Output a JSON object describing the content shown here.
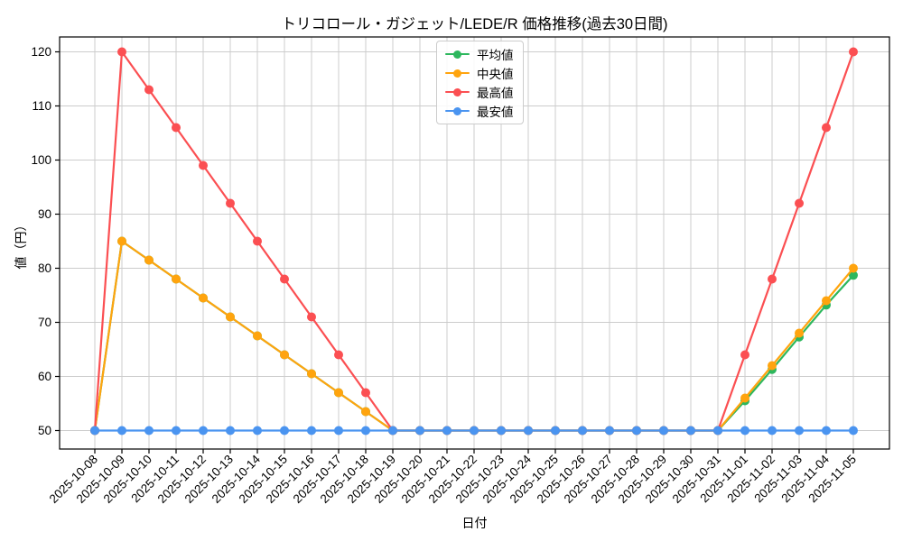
{
  "chart_data": {
    "type": "line",
    "title": "トリコロール・ガジェット/LEDE/R 価格推移(過去30日間)",
    "xlabel": "日付",
    "ylabel": "値（円）",
    "yticks": [
      50,
      60,
      70,
      80,
      90,
      100,
      110,
      120
    ],
    "ylim": [
      46.5,
      122.8
    ],
    "grid": true,
    "legend_position": "upper-center-inside",
    "background_color": "#ffffff",
    "grid_color": "#cccccc",
    "spine_color": "#000000",
    "categories": [
      "2025-10-08",
      "2025-10-09",
      "2025-10-10",
      "2025-10-11",
      "2025-10-12",
      "2025-10-13",
      "2025-10-14",
      "2025-10-15",
      "2025-10-16",
      "2025-10-17",
      "2025-10-18",
      "2025-10-19",
      "2025-10-20",
      "2025-10-21",
      "2025-10-22",
      "2025-10-23",
      "2025-10-24",
      "2025-10-25",
      "2025-10-26",
      "2025-10-27",
      "2025-10-28",
      "2025-10-29",
      "2025-10-30",
      "2025-10-31",
      "2025-11-01",
      "2025-11-02",
      "2025-11-03",
      "2025-11-04",
      "2025-11-05"
    ],
    "series": [
      {
        "key": "average",
        "name": "平均値",
        "color": "#2db75d",
        "values": [
          50,
          85,
          81.5,
          78,
          74.5,
          71,
          67.5,
          64,
          60.5,
          57,
          53.5,
          50,
          50,
          50,
          50,
          50,
          50,
          50,
          50,
          50,
          50,
          50,
          50,
          50,
          55.5,
          61.3,
          67.3,
          73.2,
          78.7
        ]
      },
      {
        "key": "median",
        "name": "中央値",
        "color": "#ffa40e",
        "values": [
          50,
          85,
          81.5,
          78,
          74.5,
          71,
          67.5,
          64,
          60.5,
          57,
          53.5,
          50,
          50,
          50,
          50,
          50,
          50,
          50,
          50,
          50,
          50,
          50,
          50,
          50,
          56,
          62,
          68,
          74,
          80
        ]
      },
      {
        "key": "highest",
        "name": "最高値",
        "color": "#fb4f52",
        "values": [
          50,
          120,
          113,
          106,
          99,
          92,
          85,
          78,
          71,
          64,
          57,
          50,
          50,
          50,
          50,
          50,
          50,
          50,
          50,
          50,
          50,
          50,
          50,
          50,
          64,
          78,
          92,
          106,
          120
        ]
      },
      {
        "key": "lowest",
        "name": "最安値",
        "color": "#4a94f0",
        "values": [
          50,
          50,
          50,
          50,
          50,
          50,
          50,
          50,
          50,
          50,
          50,
          50,
          50,
          50,
          50,
          50,
          50,
          50,
          50,
          50,
          50,
          50,
          50,
          50,
          50,
          50,
          50,
          50,
          50
        ]
      }
    ]
  }
}
